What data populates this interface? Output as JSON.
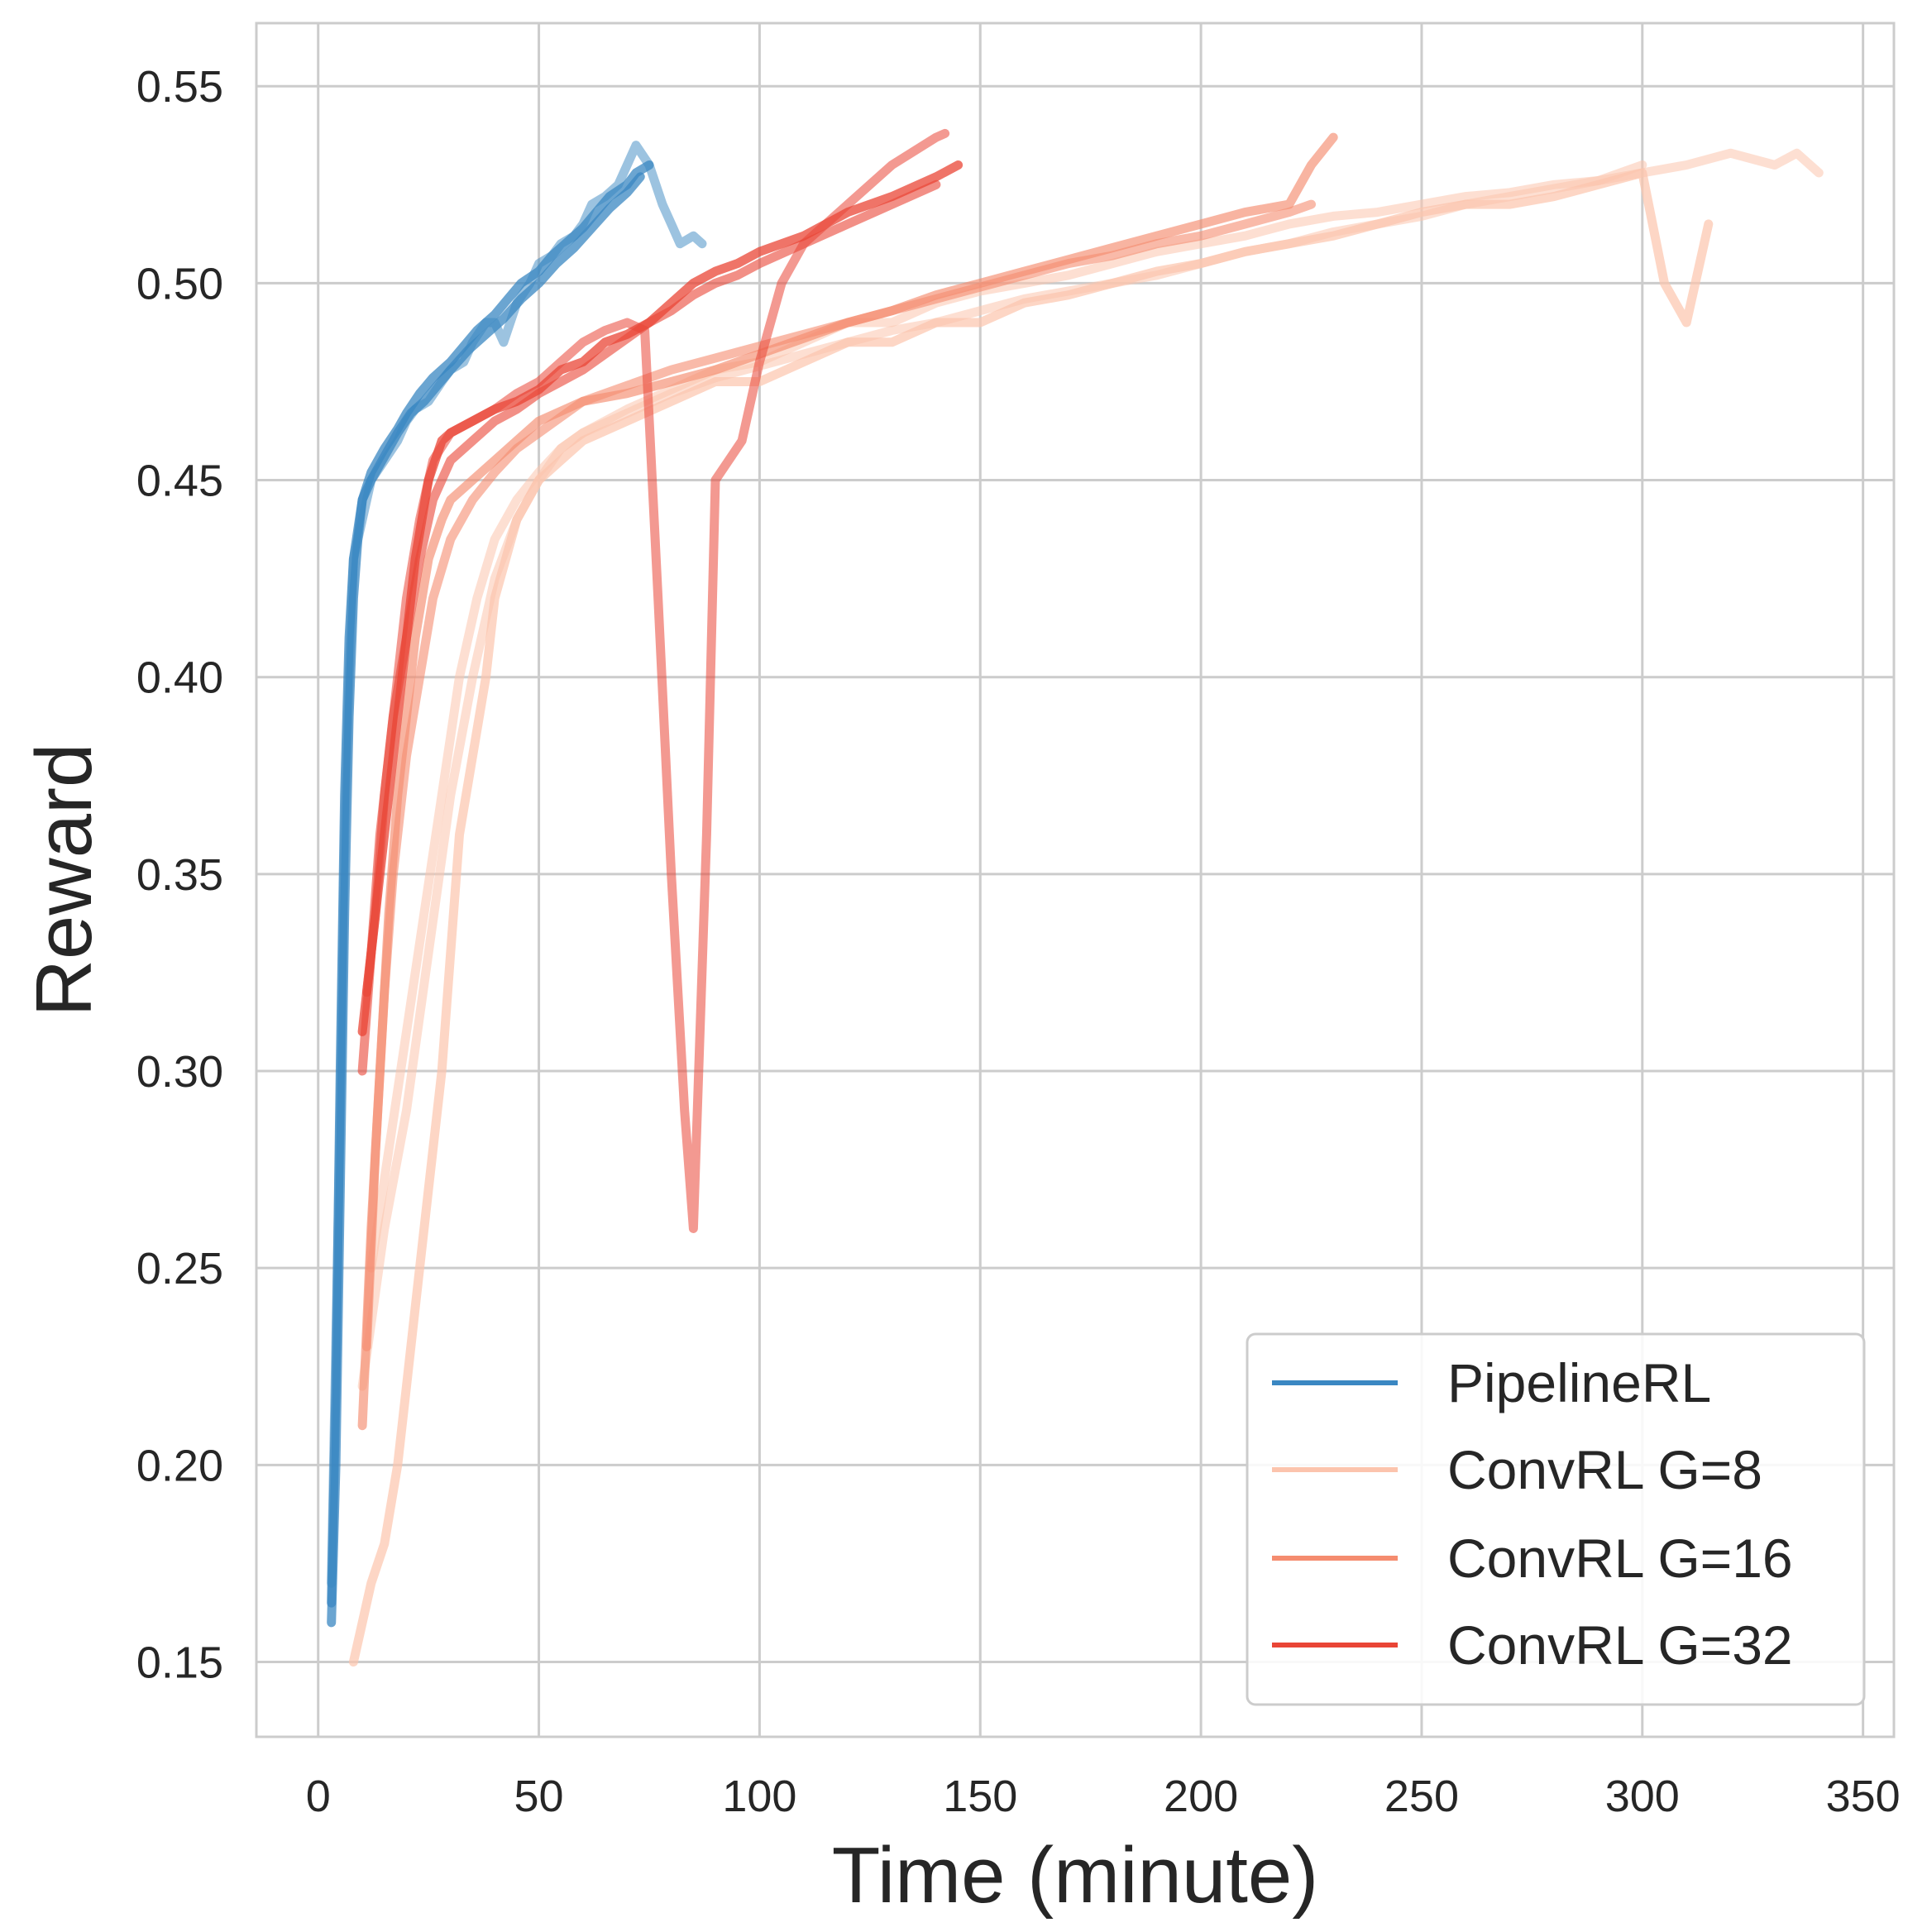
{
  "chart_data": {
    "type": "line",
    "title": "",
    "xlabel": "Time (minute)",
    "ylabel": "Reward",
    "xlim": [
      -14,
      357
    ],
    "ylim": [
      0.131,
      0.566
    ],
    "xticks": [
      0,
      50,
      100,
      150,
      200,
      250,
      300,
      350
    ],
    "yticks": [
      0.15,
      0.2,
      0.25,
      0.3,
      0.35,
      0.4,
      0.45,
      0.5,
      0.55
    ],
    "xtick_labels": [
      "0",
      "50",
      "100",
      "150",
      "200",
      "250",
      "300",
      "350"
    ],
    "ytick_labels": [
      "0.15",
      "0.20",
      "0.25",
      "0.30",
      "0.35",
      "0.40",
      "0.45",
      "0.50",
      "0.55"
    ],
    "grid": true,
    "legend_position": "lower-right",
    "legend": [
      {
        "label": "PipelineRL",
        "color": "#3a87c2"
      },
      {
        "label": "ConvRL G=8",
        "color": "#fcc4ad"
      },
      {
        "label": "ConvRL G=16",
        "color": "#f58c6f"
      },
      {
        "label": "ConvRL G=32",
        "color": "#e94536"
      }
    ],
    "series": [
      {
        "name": "PipelineRL",
        "color": "#3a87c2",
        "opacity": 0.5,
        "x": [
          3,
          4,
          5,
          6,
          7,
          8,
          10,
          12,
          15,
          18,
          20,
          22,
          25,
          28,
          30,
          33,
          35,
          38,
          40,
          42,
          45,
          48,
          50,
          53,
          55,
          58,
          60,
          62,
          65,
          68,
          70,
          72,
          75,
          78,
          80,
          82,
          85,
          87
        ],
        "y": [
          0.17,
          0.23,
          0.29,
          0.36,
          0.4,
          0.43,
          0.44,
          0.45,
          0.455,
          0.46,
          0.465,
          0.468,
          0.47,
          0.475,
          0.478,
          0.48,
          0.485,
          0.49,
          0.49,
          0.485,
          0.495,
          0.5,
          0.505,
          0.507,
          0.51,
          0.512,
          0.515,
          0.52,
          0.522,
          0.525,
          0.53,
          0.535,
          0.53,
          0.52,
          0.515,
          0.51,
          0.512,
          0.51
        ]
      },
      {
        "name": "PipelineRL",
        "color": "#3a87c2",
        "opacity": 0.75,
        "x": [
          3,
          4,
          5,
          6,
          7,
          8,
          9,
          10,
          12,
          15,
          18,
          20,
          23,
          26,
          30,
          33,
          36,
          40,
          43,
          46,
          50,
          53,
          56,
          60,
          63,
          66,
          70,
          72,
          75
        ],
        "y": [
          0.16,
          0.2,
          0.27,
          0.34,
          0.39,
          0.42,
          0.435,
          0.445,
          0.452,
          0.458,
          0.463,
          0.467,
          0.472,
          0.476,
          0.48,
          0.484,
          0.488,
          0.492,
          0.496,
          0.5,
          0.503,
          0.507,
          0.51,
          0.514,
          0.518,
          0.522,
          0.525,
          0.528,
          0.53
        ]
      },
      {
        "name": "PipelineRL",
        "color": "#3a87c2",
        "opacity": 0.75,
        "x": [
          3,
          4,
          5,
          6,
          7,
          8,
          10,
          12,
          15,
          18,
          21,
          24,
          27,
          30,
          34,
          38,
          42,
          46,
          50,
          54,
          58,
          62,
          66,
          70,
          73
        ],
        "y": [
          0.165,
          0.22,
          0.3,
          0.37,
          0.41,
          0.43,
          0.445,
          0.45,
          0.456,
          0.462,
          0.467,
          0.47,
          0.474,
          0.478,
          0.483,
          0.487,
          0.491,
          0.496,
          0.5,
          0.505,
          0.509,
          0.514,
          0.519,
          0.523,
          0.527
        ]
      },
      {
        "name": "ConvRL G=8",
        "color": "#fcc4ad",
        "opacity": 0.7,
        "x": [
          8,
          10,
          12,
          15,
          18,
          20,
          22,
          25,
          28,
          30,
          32,
          35,
          38,
          40,
          45,
          50,
          55,
          60,
          70,
          80,
          90,
          100,
          110,
          120,
          130,
          140,
          150,
          160,
          170,
          180,
          190,
          200,
          210,
          220,
          230,
          240,
          250,
          260,
          270,
          280,
          290,
          300,
          305,
          310,
          315
        ],
        "y": [
          0.15,
          0.16,
          0.17,
          0.18,
          0.2,
          0.22,
          0.24,
          0.27,
          0.3,
          0.33,
          0.36,
          0.38,
          0.4,
          0.42,
          0.44,
          0.45,
          0.455,
          0.46,
          0.465,
          0.47,
          0.475,
          0.475,
          0.48,
          0.485,
          0.485,
          0.49,
          0.49,
          0.495,
          0.497,
          0.5,
          0.503,
          0.505,
          0.508,
          0.51,
          0.512,
          0.515,
          0.518,
          0.52,
          0.52,
          0.522,
          0.525,
          0.528,
          0.5,
          0.49,
          0.515
        ]
      },
      {
        "name": "ConvRL G=8",
        "color": "#fcc4ad",
        "opacity": 0.55,
        "x": [
          10,
          15,
          20,
          25,
          30,
          35,
          40,
          45,
          50,
          55,
          60,
          70,
          80,
          90,
          100,
          110,
          120,
          130,
          140,
          150,
          160,
          170,
          180,
          190,
          200,
          210,
          220,
          230,
          240,
          250,
          260,
          270,
          280,
          290,
          300,
          310,
          320,
          330,
          335,
          340
        ],
        "y": [
          0.22,
          0.26,
          0.29,
          0.33,
          0.37,
          0.4,
          0.425,
          0.44,
          0.45,
          0.458,
          0.462,
          0.468,
          0.473,
          0.478,
          0.48,
          0.485,
          0.49,
          0.49,
          0.495,
          0.498,
          0.5,
          0.502,
          0.505,
          0.508,
          0.51,
          0.512,
          0.515,
          0.517,
          0.518,
          0.52,
          0.522,
          0.523,
          0.525,
          0.526,
          0.528,
          0.53,
          0.533,
          0.53,
          0.533,
          0.528
        ]
      },
      {
        "name": "ConvRL G=8",
        "color": "#fcc4ad",
        "opacity": 0.55,
        "x": [
          12,
          16,
          20,
          24,
          28,
          32,
          36,
          40,
          45,
          50,
          55,
          60,
          70,
          80,
          90,
          100,
          110,
          120,
          130,
          140,
          150,
          160,
          170,
          180,
          190,
          200,
          210,
          220,
          230,
          240,
          250,
          260,
          270,
          280,
          290,
          300
        ],
        "y": [
          0.25,
          0.28,
          0.31,
          0.34,
          0.37,
          0.4,
          0.42,
          0.435,
          0.445,
          0.452,
          0.458,
          0.462,
          0.467,
          0.472,
          0.476,
          0.479,
          0.482,
          0.485,
          0.488,
          0.49,
          0.493,
          0.496,
          0.498,
          0.5,
          0.502,
          0.505,
          0.508,
          0.51,
          0.513,
          0.515,
          0.517,
          0.52,
          0.522,
          0.524,
          0.526,
          0.53
        ]
      },
      {
        "name": "ConvRL G=16",
        "color": "#f58c6f",
        "opacity": 0.65,
        "x": [
          10,
          12,
          14,
          16,
          18,
          20,
          22,
          25,
          28,
          30,
          35,
          40,
          45,
          50,
          60,
          70,
          80,
          90,
          100,
          110,
          120,
          130,
          140,
          150,
          160,
          170,
          180,
          190,
          200,
          210,
          220,
          225,
          230
        ],
        "y": [
          0.21,
          0.26,
          0.3,
          0.34,
          0.37,
          0.39,
          0.41,
          0.43,
          0.44,
          0.445,
          0.45,
          0.455,
          0.46,
          0.465,
          0.47,
          0.472,
          0.475,
          0.478,
          0.482,
          0.486,
          0.49,
          0.493,
          0.497,
          0.5,
          0.503,
          0.506,
          0.509,
          0.512,
          0.515,
          0.518,
          0.52,
          0.53,
          0.537
        ]
      },
      {
        "name": "ConvRL G=16",
        "color": "#f58c6f",
        "opacity": 0.6,
        "x": [
          11,
          13,
          15,
          17,
          20,
          23,
          26,
          30,
          35,
          40,
          45,
          50,
          55,
          60,
          70,
          80,
          90,
          100,
          110,
          120,
          130,
          140,
          150,
          160,
          170,
          180,
          190,
          200,
          210,
          220,
          225
        ],
        "y": [
          0.23,
          0.28,
          0.32,
          0.35,
          0.38,
          0.4,
          0.42,
          0.435,
          0.445,
          0.452,
          0.458,
          0.462,
          0.466,
          0.47,
          0.474,
          0.478,
          0.481,
          0.484,
          0.487,
          0.49,
          0.493,
          0.496,
          0.499,
          0.502,
          0.505,
          0.507,
          0.51,
          0.512,
          0.515,
          0.518,
          0.52
        ]
      },
      {
        "name": "ConvRL G=32",
        "color": "#e94536",
        "opacity": 0.75,
        "x": [
          10,
          12,
          14,
          16,
          18,
          20,
          22,
          25,
          28,
          30,
          35,
          40,
          45,
          50,
          55,
          60,
          65,
          70,
          75,
          80,
          85,
          90,
          95,
          100,
          110,
          120,
          130,
          140,
          145
        ],
        "y": [
          0.31,
          0.33,
          0.35,
          0.37,
          0.39,
          0.41,
          0.43,
          0.45,
          0.46,
          0.462,
          0.465,
          0.468,
          0.47,
          0.473,
          0.478,
          0.48,
          0.485,
          0.487,
          0.49,
          0.495,
          0.5,
          0.503,
          0.505,
          0.508,
          0.512,
          0.518,
          0.522,
          0.527,
          0.53
        ]
      },
      {
        "name": "ConvRL G=32",
        "color": "#e94536",
        "opacity": 0.55,
        "x": [
          11,
          13,
          15,
          18,
          20,
          23,
          26,
          30,
          35,
          40,
          45,
          50,
          55,
          60,
          65,
          70,
          74,
          77,
          80,
          83,
          85,
          88,
          90,
          93,
          96,
          100,
          105,
          110,
          120,
          130,
          140,
          142
        ],
        "y": [
          0.32,
          0.34,
          0.37,
          0.4,
          0.42,
          0.44,
          0.455,
          0.462,
          0.465,
          0.468,
          0.472,
          0.475,
          0.48,
          0.485,
          0.488,
          0.49,
          0.488,
          0.42,
          0.35,
          0.29,
          0.26,
          0.36,
          0.45,
          0.455,
          0.46,
          0.48,
          0.5,
          0.51,
          0.52,
          0.53,
          0.537,
          0.538
        ]
      },
      {
        "name": "ConvRL G=32",
        "color": "#e94536",
        "opacity": 0.6,
        "x": [
          10,
          12,
          14,
          17,
          20,
          23,
          26,
          30,
          35,
          40,
          45,
          50,
          55,
          60,
          65,
          70,
          75,
          80,
          85,
          90,
          95,
          100,
          110,
          120,
          130,
          140
        ],
        "y": [
          0.3,
          0.33,
          0.36,
          0.39,
          0.41,
          0.43,
          0.445,
          0.455,
          0.46,
          0.465,
          0.468,
          0.472,
          0.475,
          0.478,
          0.482,
          0.486,
          0.49,
          0.493,
          0.497,
          0.5,
          0.502,
          0.505,
          0.51,
          0.515,
          0.52,
          0.525
        ]
      }
    ]
  }
}
